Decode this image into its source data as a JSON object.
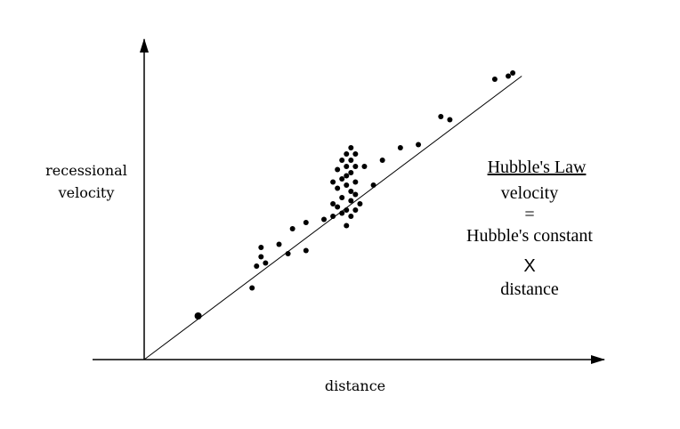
{
  "chart_data": {
    "type": "scatter",
    "xlabel": "distance",
    "ylabel_lines": [
      "recessional",
      "velocity"
    ],
    "grid": false,
    "legend": "none",
    "annotation": {
      "title": "Hubble's Law",
      "lines": [
        "velocity",
        "=",
        "Hubble's constant",
        "X",
        "distance"
      ]
    },
    "xlim": [
      0,
      100
    ],
    "ylim": [
      0,
      100
    ],
    "trend_line": {
      "from": [
        0,
        0
      ],
      "to": [
        84,
        91
      ]
    },
    "points": [
      {
        "x": 12,
        "y": 14
      },
      {
        "x": 24,
        "y": 23
      },
      {
        "x": 25,
        "y": 30
      },
      {
        "x": 26,
        "y": 33
      },
      {
        "x": 26,
        "y": 36
      },
      {
        "x": 27,
        "y": 31
      },
      {
        "x": 30,
        "y": 37
      },
      {
        "x": 32,
        "y": 34
      },
      {
        "x": 33,
        "y": 42
      },
      {
        "x": 36,
        "y": 35
      },
      {
        "x": 36,
        "y": 44
      },
      {
        "x": 40,
        "y": 45
      },
      {
        "x": 42,
        "y": 46
      },
      {
        "x": 42,
        "y": 50
      },
      {
        "x": 42,
        "y": 57
      },
      {
        "x": 43,
        "y": 49
      },
      {
        "x": 43,
        "y": 55
      },
      {
        "x": 43,
        "y": 61
      },
      {
        "x": 44,
        "y": 47
      },
      {
        "x": 44,
        "y": 52
      },
      {
        "x": 44,
        "y": 58
      },
      {
        "x": 44,
        "y": 64
      },
      {
        "x": 45,
        "y": 43
      },
      {
        "x": 45,
        "y": 48
      },
      {
        "x": 45,
        "y": 56
      },
      {
        "x": 45,
        "y": 59
      },
      {
        "x": 45,
        "y": 62
      },
      {
        "x": 45,
        "y": 66
      },
      {
        "x": 46,
        "y": 46
      },
      {
        "x": 46,
        "y": 51
      },
      {
        "x": 46,
        "y": 54
      },
      {
        "x": 46,
        "y": 60
      },
      {
        "x": 46,
        "y": 64
      },
      {
        "x": 46,
        "y": 68
      },
      {
        "x": 47,
        "y": 48
      },
      {
        "x": 47,
        "y": 53
      },
      {
        "x": 47,
        "y": 57
      },
      {
        "x": 47,
        "y": 62
      },
      {
        "x": 47,
        "y": 66
      },
      {
        "x": 48,
        "y": 50
      },
      {
        "x": 49,
        "y": 62
      },
      {
        "x": 51,
        "y": 56
      },
      {
        "x": 53,
        "y": 64
      },
      {
        "x": 57,
        "y": 68
      },
      {
        "x": 61,
        "y": 69
      },
      {
        "x": 66,
        "y": 78
      },
      {
        "x": 68,
        "y": 77
      },
      {
        "x": 78,
        "y": 90
      },
      {
        "x": 81,
        "y": 91
      },
      {
        "x": 82,
        "y": 92
      }
    ]
  }
}
